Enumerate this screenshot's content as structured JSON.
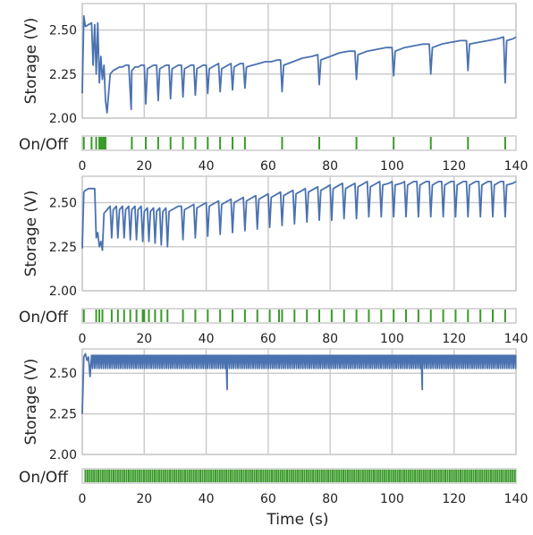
{
  "chart_data": {
    "type": "line",
    "xlabel": "Time (s)",
    "xlim": [
      0,
      140
    ],
    "x_ticks": [
      "0",
      "20",
      "40",
      "60",
      "80",
      "100",
      "120",
      "140"
    ],
    "colors": {
      "storage": "#4a72b0",
      "onoff": "#3a9a2a",
      "grid": "#cccccc"
    },
    "panels": [
      {
        "ylabel": "Storage (V)",
        "onoff_label": "On/Off",
        "ylim": [
          2.0,
          2.65
        ],
        "y_ticks": [
          "2.00",
          "2.25",
          "2.50"
        ],
        "storage": {
          "x": [
            0,
            0.5,
            1,
            2,
            3,
            3.5,
            4,
            4.5,
            5,
            5.5,
            6,
            6.5,
            7,
            7.5,
            8,
            9,
            10,
            11,
            12,
            13,
            14,
            15,
            15.8,
            16,
            17,
            18,
            19,
            20,
            20.5,
            21,
            22,
            23,
            24,
            24.5,
            25,
            26,
            27,
            28,
            28.5,
            29,
            30,
            31,
            32,
            32.5,
            33,
            34,
            35,
            36,
            36.5,
            37,
            38,
            39,
            40,
            40.5,
            41,
            42,
            43,
            44,
            44.5,
            45,
            46,
            47,
            48,
            48.5,
            49,
            50,
            51,
            52,
            52.5,
            53,
            55,
            57,
            59,
            61,
            63,
            64,
            64.5,
            65,
            68,
            71,
            74,
            76,
            76.5,
            77,
            80,
            83,
            86,
            88,
            88.5,
            89,
            92,
            95,
            98,
            100,
            100.5,
            101,
            104,
            107,
            110,
            112,
            112.5,
            113,
            116,
            119,
            122,
            124,
            124.5,
            125,
            128,
            131,
            134,
            136,
            136.5,
            137,
            139,
            140
          ],
          "y": [
            2.14,
            2.58,
            2.52,
            2.53,
            2.54,
            2.3,
            2.53,
            2.25,
            2.54,
            2.2,
            2.35,
            2.22,
            2.3,
            2.1,
            2.03,
            2.25,
            2.27,
            2.28,
            2.29,
            2.29,
            2.3,
            2.3,
            2.05,
            2.27,
            2.29,
            2.29,
            2.3,
            2.3,
            2.08,
            2.28,
            2.29,
            2.3,
            2.3,
            2.1,
            2.28,
            2.29,
            2.3,
            2.3,
            2.11,
            2.28,
            2.29,
            2.3,
            2.3,
            2.12,
            2.28,
            2.29,
            2.3,
            2.3,
            2.13,
            2.28,
            2.29,
            2.3,
            2.3,
            2.14,
            2.28,
            2.29,
            2.3,
            2.31,
            2.15,
            2.28,
            2.29,
            2.3,
            2.31,
            2.16,
            2.29,
            2.3,
            2.31,
            2.31,
            2.17,
            2.29,
            2.3,
            2.31,
            2.32,
            2.32,
            2.33,
            2.33,
            2.15,
            2.3,
            2.32,
            2.34,
            2.35,
            2.36,
            2.19,
            2.33,
            2.35,
            2.37,
            2.38,
            2.38,
            2.22,
            2.36,
            2.38,
            2.39,
            2.4,
            2.4,
            2.24,
            2.38,
            2.4,
            2.41,
            2.42,
            2.42,
            2.25,
            2.4,
            2.42,
            2.43,
            2.44,
            2.44,
            2.27,
            2.42,
            2.43,
            2.44,
            2.45,
            2.46,
            2.2,
            2.44,
            2.45,
            2.46
          ]
        },
        "pulses": [
          0.5,
          3,
          4.5,
          5.5,
          6,
          6.5,
          7,
          7.5,
          16,
          20.5,
          24.5,
          28.5,
          32.5,
          36.5,
          40.5,
          44.5,
          48.5,
          52.5,
          64.5,
          76.5,
          88.5,
          100.5,
          112.5,
          124.5,
          136.5
        ]
      },
      {
        "ylabel": "Storage (V)",
        "onoff_label": "On/Off",
        "ylim": [
          2.0,
          2.65
        ],
        "y_ticks": [
          "2.00",
          "2.25",
          "2.50"
        ],
        "storage": {
          "x": [
            0,
            0.5,
            1,
            2,
            3,
            4,
            4.5,
            5,
            5.5,
            6,
            6.5,
            7,
            8,
            9,
            9.5,
            10,
            11,
            11.5,
            12,
            13,
            13.5,
            14,
            15,
            15.5,
            16,
            17,
            17.5,
            18,
            19,
            19.5,
            20,
            21,
            21.5,
            22,
            23,
            23.5,
            24,
            25,
            25.5,
            26,
            27,
            27.5,
            28,
            29,
            30,
            31,
            32,
            32.5,
            33,
            35,
            36,
            36.5,
            37,
            39,
            40,
            40.5,
            41,
            43,
            44,
            44.5,
            45,
            47,
            48,
            48.5,
            49,
            51,
            52,
            52.5,
            53,
            55,
            56,
            56.5,
            57,
            59,
            60,
            60.5,
            61,
            63,
            64,
            64.5,
            65,
            67,
            68,
            68.5,
            69,
            71,
            72,
            72.5,
            73,
            75,
            76,
            76.5,
            77,
            79,
            80,
            80.5,
            81,
            83,
            84,
            84.5,
            85,
            87,
            88,
            88.5,
            89,
            91,
            92,
            92.5,
            93,
            95,
            96,
            96.5,
            97,
            99,
            100,
            100.5,
            101,
            103,
            104,
            104.5,
            105,
            107,
            108,
            108.5,
            109,
            111,
            112,
            112.5,
            113,
            115,
            116,
            116.5,
            117,
            119,
            120,
            120.5,
            121,
            123,
            124,
            124.5,
            125,
            127,
            128,
            128.5,
            129,
            131,
            132,
            132.5,
            133,
            135,
            136,
            136.5,
            137,
            139,
            140
          ],
          "y": [
            2.24,
            2.56,
            2.57,
            2.58,
            2.58,
            2.58,
            2.3,
            2.33,
            2.25,
            2.28,
            2.23,
            2.44,
            2.46,
            2.48,
            2.3,
            2.46,
            2.48,
            2.3,
            2.46,
            2.48,
            2.3,
            2.46,
            2.48,
            2.29,
            2.46,
            2.48,
            2.29,
            2.46,
            2.48,
            2.28,
            2.45,
            2.47,
            2.28,
            2.45,
            2.47,
            2.27,
            2.45,
            2.47,
            2.26,
            2.45,
            2.47,
            2.25,
            2.45,
            2.46,
            2.47,
            2.48,
            2.48,
            2.29,
            2.46,
            2.48,
            2.49,
            2.3,
            2.47,
            2.49,
            2.5,
            2.31,
            2.48,
            2.5,
            2.51,
            2.32,
            2.49,
            2.51,
            2.52,
            2.33,
            2.5,
            2.52,
            2.53,
            2.34,
            2.51,
            2.53,
            2.54,
            2.35,
            2.52,
            2.54,
            2.55,
            2.36,
            2.53,
            2.55,
            2.56,
            2.37,
            2.54,
            2.56,
            2.57,
            2.38,
            2.55,
            2.57,
            2.58,
            2.39,
            2.56,
            2.58,
            2.59,
            2.4,
            2.57,
            2.59,
            2.6,
            2.4,
            2.58,
            2.6,
            2.61,
            2.41,
            2.58,
            2.6,
            2.61,
            2.41,
            2.59,
            2.61,
            2.62,
            2.42,
            2.59,
            2.61,
            2.62,
            2.42,
            2.6,
            2.61,
            2.62,
            2.42,
            2.6,
            2.61,
            2.62,
            2.42,
            2.6,
            2.62,
            2.62,
            2.42,
            2.6,
            2.62,
            2.62,
            2.42,
            2.6,
            2.62,
            2.62,
            2.42,
            2.6,
            2.62,
            2.62,
            2.42,
            2.6,
            2.62,
            2.62,
            2.42,
            2.6,
            2.62,
            2.62,
            2.42,
            2.6,
            2.62,
            2.62,
            2.42,
            2.6,
            2.62,
            2.62,
            2.42,
            2.6,
            2.61,
            2.62
          ]
        },
        "pulses": [
          0.5,
          4.5,
          5.5,
          6.5,
          9.5,
          11.5,
          13.5,
          15.5,
          17.5,
          19.5,
          20,
          21.5,
          23.5,
          25.5,
          27.5,
          32.5,
          36.5,
          40.5,
          44.5,
          48.5,
          52.5,
          56.5,
          60.5,
          63.5,
          64.5,
          68.5,
          72.5,
          76.5,
          80.5,
          84.5,
          88.5,
          92.5,
          96.5,
          100.5,
          104.5,
          108.5,
          112.5,
          116.5,
          120.5,
          124.5,
          128.5,
          132.5,
          136.5
        ]
      },
      {
        "ylabel": "Storage (V)",
        "onoff_label": "On/Off",
        "ylim": [
          2.0,
          2.65
        ],
        "y_ticks": [
          "2.00",
          "2.25",
          "2.50"
        ],
        "storage": {
          "x": [
            0,
            0.5,
            1,
            1.5,
            2,
            2.5,
            3,
            140
          ],
          "y": [
            2.25,
            2.6,
            2.62,
            2.58,
            2.6,
            2.48,
            2.61,
            2.61
          ],
          "oscillation": {
            "start": 3,
            "end": 140,
            "period": 0.7,
            "high": 2.61,
            "low": 2.53,
            "deep_dips": [
              [
                47,
                2.4
              ],
              [
                110,
                2.4
              ]
            ]
          }
        },
        "pulses": {
          "start": 1,
          "end": 140,
          "period": 0.7
        }
      }
    ]
  }
}
